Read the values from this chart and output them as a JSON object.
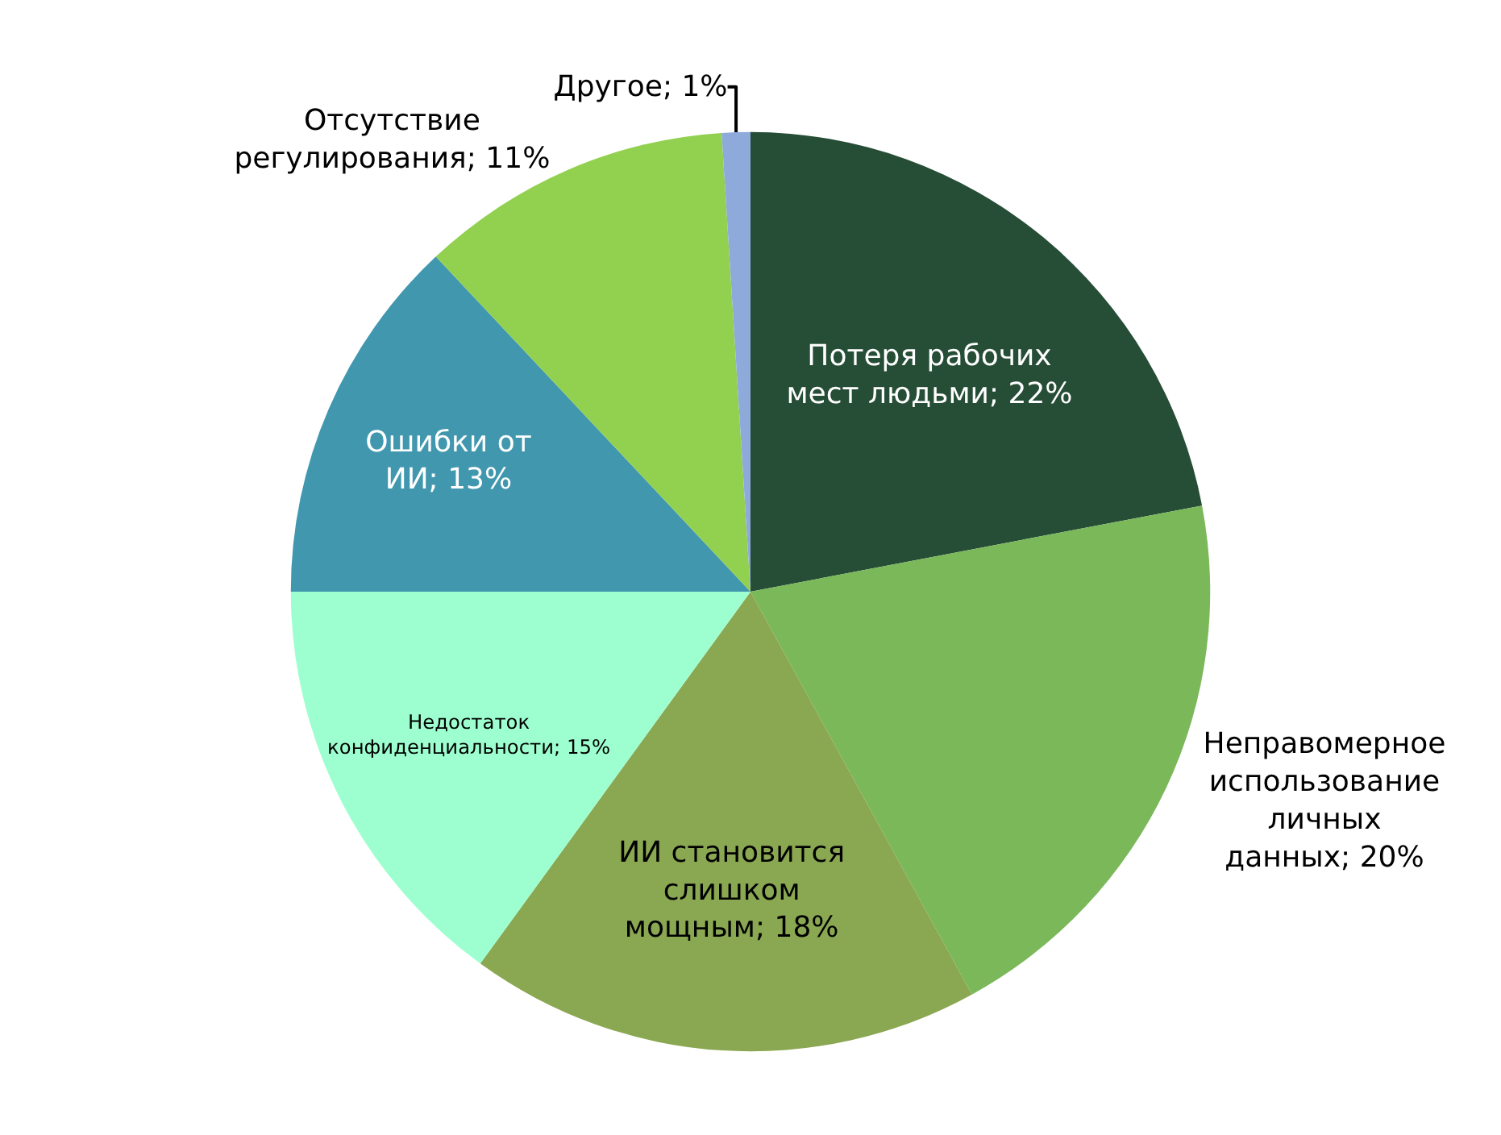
{
  "chart_data": {
    "type": "pie",
    "categories": [
      "Потеря рабочих мест людьми",
      "Неправомерное использование личных данных",
      "ИИ становится слишком мощным",
      "Недостаток конфиденциальности",
      "Ошибки от ИИ",
      "Отсутствие регулирования",
      "Другое"
    ],
    "values": [
      22,
      20,
      18,
      15,
      13,
      11,
      1
    ],
    "value_labels": [
      "22%",
      "20%",
      "18%",
      "15%",
      "13%",
      "11%",
      "1%"
    ],
    "colors": [
      "#264d36",
      "#7ab85a",
      "#8aa752",
      "#9dffcf",
      "#4197ae",
      "#92d050",
      "#8eaadb"
    ],
    "legend": false
  }
}
